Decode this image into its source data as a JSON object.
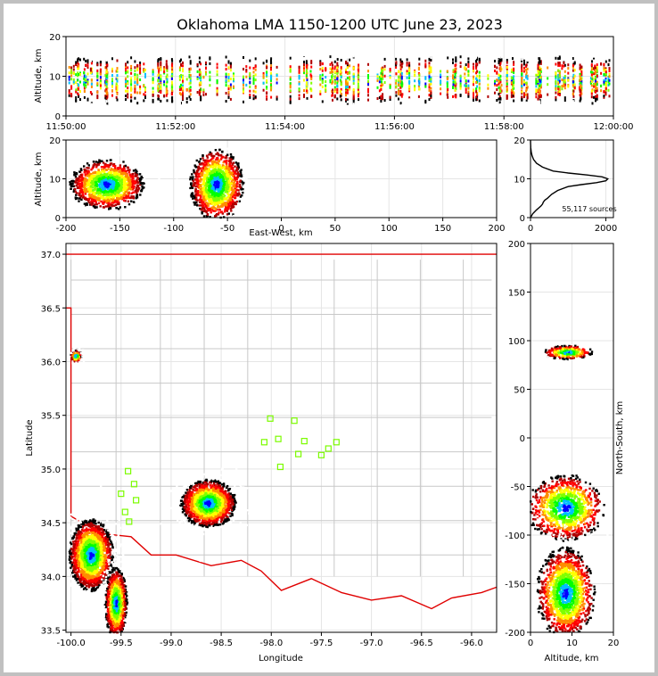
{
  "title": "Oklahoma LMA 1150-1200 UTC June 23, 2023",
  "source_count_label": "55,117 sources",
  "chart_data": [
    {
      "panel": "altitude-vs-time",
      "type": "heatmap",
      "xlabel": "",
      "ylabel": "Altitude, km",
      "x_ticks": [
        "11:50:00",
        "11:52:00",
        "11:54:00",
        "11:56:00",
        "11:58:00",
        "12:00:00"
      ],
      "xlim": [
        "11:50:00",
        "12:00:00"
      ],
      "y_ticks": [
        0,
        10,
        20
      ],
      "ylim": [
        0,
        20
      ],
      "grid": true
    },
    {
      "panel": "altitude-vs-east-west",
      "type": "heatmap",
      "xlabel": "East-West, km",
      "ylabel": "Altitude, km",
      "x_ticks": [
        -200,
        -150,
        -100,
        -50,
        0,
        50,
        100,
        150,
        200
      ],
      "xlim": [
        -200,
        200
      ],
      "y_ticks": [
        0,
        10,
        20
      ],
      "ylim": [
        0,
        20
      ],
      "grid": true,
      "clusters": [
        {
          "x_center": -162,
          "x_width": 58,
          "alt_center": 8.5,
          "alt_width": 11
        },
        {
          "x_center": -60,
          "x_width": 42,
          "alt_center": 8.5,
          "alt_width": 16
        }
      ]
    },
    {
      "panel": "altitude-histogram",
      "type": "line",
      "xlabel": "",
      "ylabel": "",
      "x_ticks": [
        0,
        2000
      ],
      "xlim": [
        0,
        2200
      ],
      "y_ticks": [
        0,
        10,
        20
      ],
      "ylim": [
        0,
        20
      ],
      "grid": true,
      "x": [
        0,
        30,
        60,
        110,
        160,
        220,
        280,
        320,
        340,
        380,
        450,
        560,
        720,
        1000,
        1350,
        1750,
        2000,
        2050,
        1900,
        1500,
        1000,
        600,
        320,
        160,
        80,
        40,
        20,
        8,
        3,
        0
      ],
      "y": [
        0,
        0.5,
        1,
        1.5,
        2,
        2.5,
        3,
        3.5,
        4,
        4.5,
        5,
        6,
        7,
        8,
        8.5,
        9,
        9.5,
        10,
        10.5,
        11,
        11.5,
        12,
        13,
        14,
        15,
        16,
        17,
        18,
        19,
        20
      ]
    },
    {
      "panel": "plan-view-map",
      "type": "scatter",
      "xlabel": "Longitude",
      "ylabel": "Latitude",
      "x_ticks": [
        -100.0,
        -99.5,
        -99.0,
        -98.5,
        -98.0,
        -97.5,
        -97.0,
        -96.5,
        -96.0
      ],
      "xlim": [
        -100.05,
        -95.75
      ],
      "y_ticks": [
        33.5,
        34.0,
        34.5,
        35.0,
        35.5,
        36.0,
        36.5,
        37.0
      ],
      "ylim": [
        33.48,
        37.1
      ],
      "grid": true,
      "stations": {
        "lon": [
          -98.01,
          -97.77,
          -97.93,
          -98.07,
          -97.67,
          -97.73,
          -97.35,
          -97.43,
          -97.5,
          -97.91,
          -99.43,
          -99.37,
          -99.5,
          -99.35,
          -99.46,
          -99.42
        ],
        "lat": [
          35.47,
          35.45,
          35.28,
          35.25,
          35.26,
          35.14,
          35.25,
          35.19,
          35.13,
          35.02,
          34.98,
          34.86,
          34.77,
          34.71,
          34.6,
          34.51
        ]
      },
      "clusters": [
        {
          "lon_center": -98.63,
          "lat_center": 34.68,
          "radius_lon": 0.25,
          "radius_lat": 0.2
        },
        {
          "lon_center": -99.8,
          "lat_center": 34.2,
          "radius_lon": 0.2,
          "radius_lat": 0.3
        },
        {
          "lon_center": -99.55,
          "lat_center": 33.75,
          "radius_lon": 0.1,
          "radius_lat": 0.3
        },
        {
          "lon_center": -99.95,
          "lat_center": 36.05,
          "radius_lon": 0.05,
          "radius_lat": 0.05
        }
      ]
    },
    {
      "panel": "north-south-vs-altitude",
      "type": "heatmap",
      "xlabel": "Altitude, km",
      "ylabel": "North-South, km",
      "x_ticks": [
        0,
        10,
        20
      ],
      "xlim": [
        0,
        20
      ],
      "y_ticks": [
        -200,
        -150,
        -100,
        -50,
        0,
        50,
        100,
        150,
        200
      ],
      "ylim": [
        -200,
        200
      ],
      "grid": true,
      "clusters": [
        {
          "y_center": -72,
          "y_width": 58,
          "alt_center": 8.5,
          "alt_width": 16
        },
        {
          "y_center": -160,
          "y_width": 80,
          "alt_center": 8.5,
          "alt_width": 12
        },
        {
          "y_center": 88,
          "y_width": 12,
          "alt_center": 9,
          "alt_width": 10
        }
      ]
    }
  ]
}
